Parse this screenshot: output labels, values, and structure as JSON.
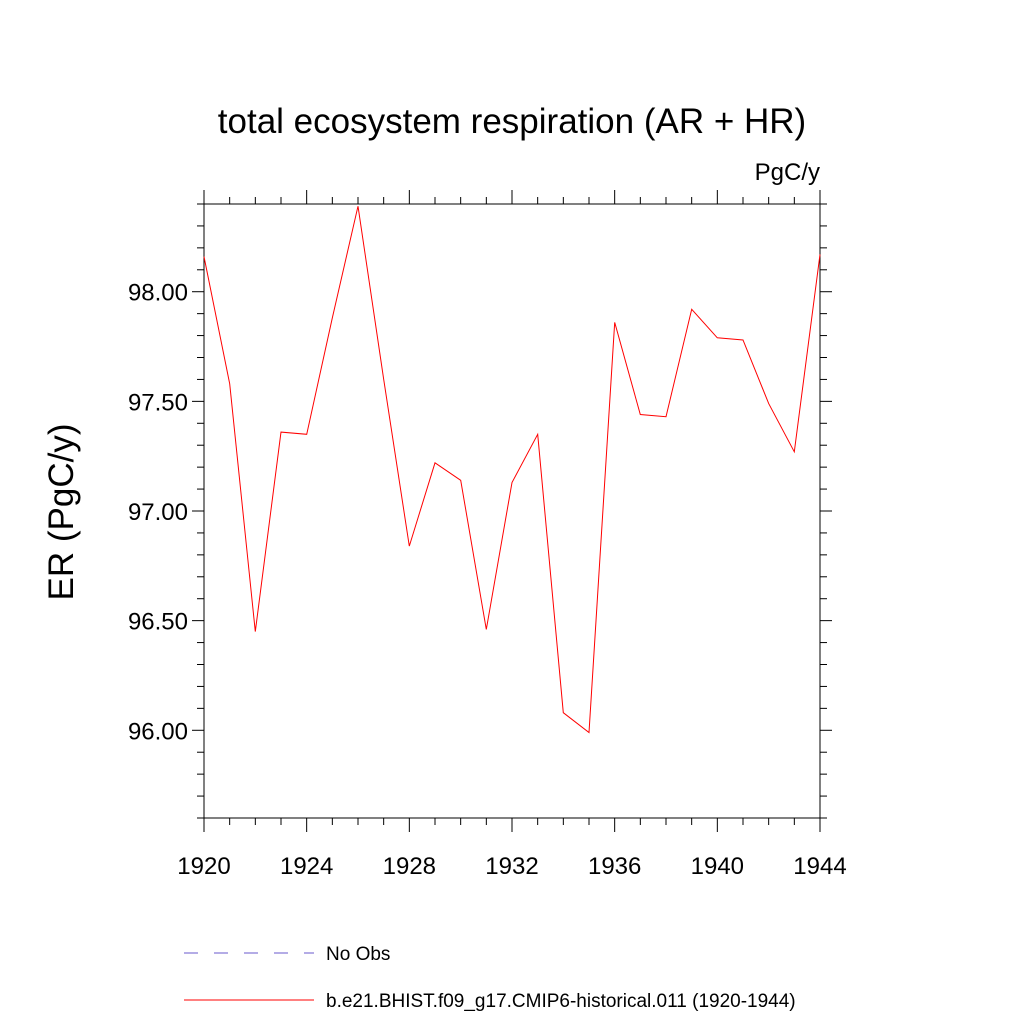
{
  "chart_data": {
    "type": "line",
    "title": "total ecosystem respiration (AR + HR)",
    "units_label": "PgC/y",
    "xlabel": "",
    "ylabel": "ER  (PgC/y)",
    "xlim": [
      1920,
      1944
    ],
    "ylim": [
      95.6,
      98.4
    ],
    "xticks": [
      1920,
      1924,
      1928,
      1932,
      1936,
      1940,
      1944
    ],
    "xtick_labels": [
      "1920",
      "1924",
      "1928",
      "1932",
      "1936",
      "1940",
      "1944"
    ],
    "yticks": [
      96.0,
      96.5,
      97.0,
      97.5,
      98.0
    ],
    "ytick_labels": [
      "96.00",
      "96.50",
      "97.00",
      "97.50",
      "98.00"
    ],
    "grid": false,
    "legend_position": "bottom",
    "series": [
      {
        "name": "b.e21.BHIST.f09_g17.CMIP6-historical.011 (1920-1944)",
        "color": "#ff0000",
        "style": "solid",
        "x": [
          1920,
          1921,
          1922,
          1923,
          1924,
          1925,
          1926,
          1927,
          1928,
          1929,
          1930,
          1931,
          1932,
          1933,
          1934,
          1935,
          1936,
          1937,
          1938,
          1939,
          1940,
          1941,
          1942,
          1943,
          1944
        ],
        "y": [
          98.16,
          97.58,
          96.45,
          97.36,
          97.35,
          97.88,
          98.39,
          97.6,
          96.84,
          97.22,
          97.14,
          96.46,
          97.13,
          97.35,
          96.08,
          95.99,
          97.86,
          97.44,
          97.43,
          97.92,
          97.79,
          97.78,
          97.49,
          97.27,
          98.17
        ]
      }
    ],
    "legend": [
      {
        "label": "No Obs",
        "color": "#6a5acd",
        "style": "dashed"
      },
      {
        "label": "b.e21.BHIST.f09_g17.CMIP6-historical.011 (1920-1944)",
        "color": "#ff0000",
        "style": "solid"
      }
    ]
  }
}
